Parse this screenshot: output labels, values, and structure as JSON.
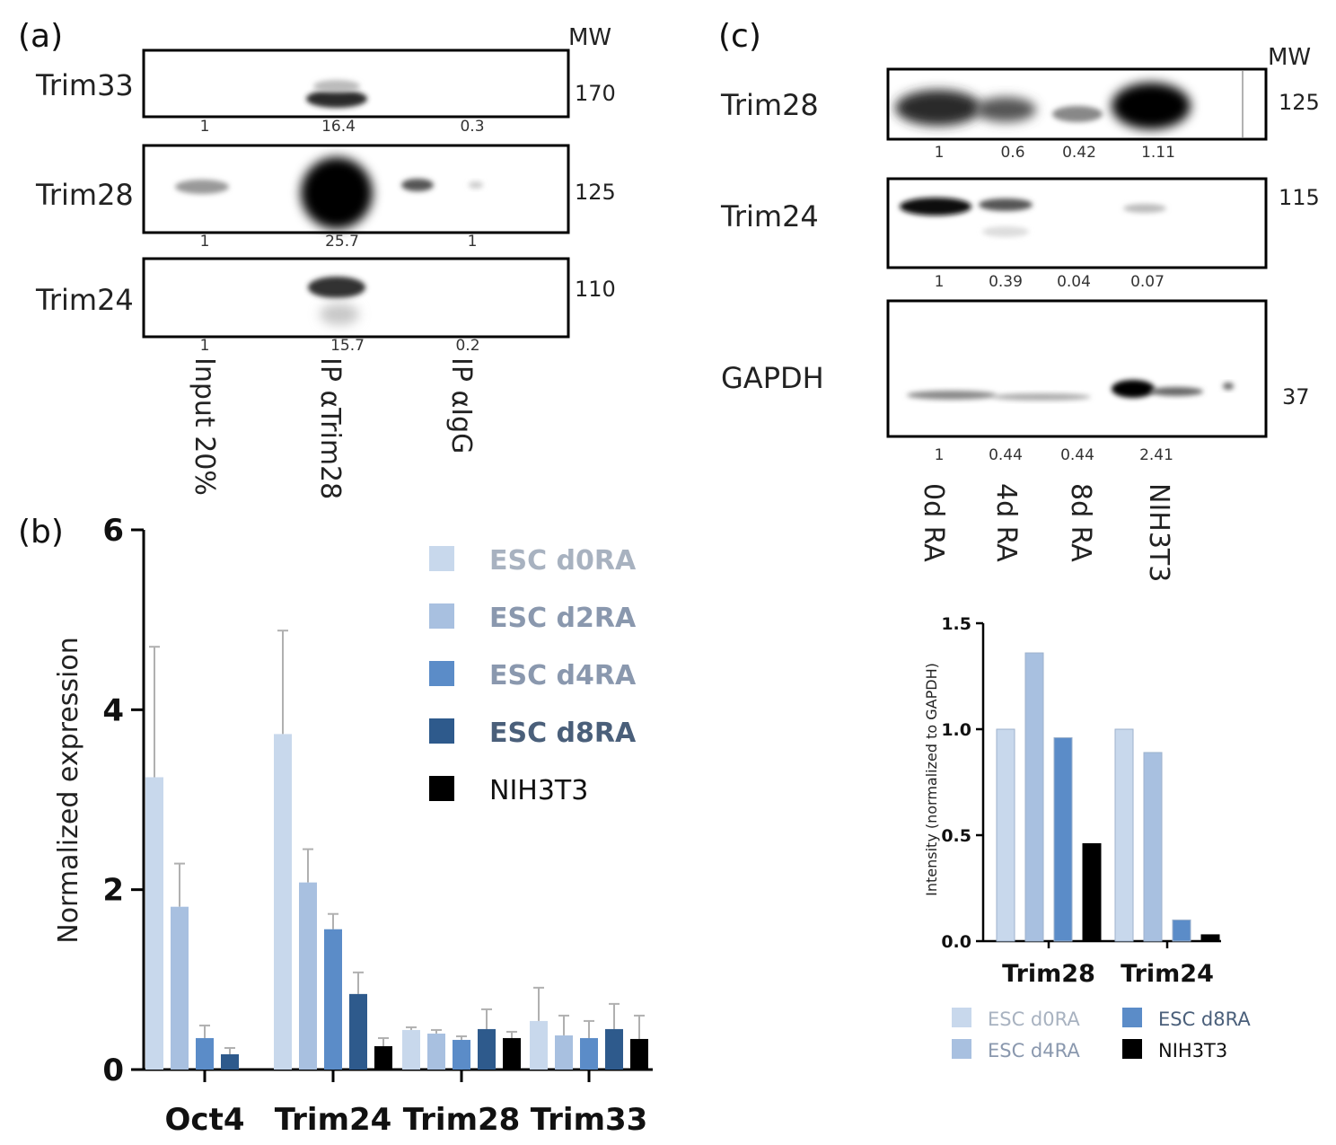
{
  "figure": {
    "panel_a": {
      "letter": "(a)",
      "mw_header": "MW",
      "blots": [
        {
          "protein": "Trim33",
          "mw": "170",
          "quant": [
            "1",
            "16.4",
            "0.3"
          ]
        },
        {
          "protein": "Trim28",
          "mw": "125",
          "quant": [
            "1",
            "25.7",
            "1"
          ]
        },
        {
          "protein": "Trim24",
          "mw": "110",
          "quant": [
            "1",
            "15.7",
            "0.2"
          ]
        }
      ],
      "lanes": [
        "Input 20%",
        "IP αTrim28",
        "IP αIgG"
      ]
    },
    "panel_c": {
      "letter": "(c)",
      "mw_header": "MW",
      "blots": [
        {
          "protein": "Trim28",
          "mw": "125",
          "quant": [
            "1",
            "0.6",
            "0.42",
            "1.11"
          ]
        },
        {
          "protein": "Trim24",
          "mw": "115",
          "quant": [
            "1",
            "0.39",
            "0.04",
            "0.07"
          ]
        },
        {
          "protein": "GAPDH",
          "mw": "37",
          "quant": [
            "1",
            "0.44",
            "0.44",
            "2.41"
          ]
        }
      ],
      "lanes": [
        "0d RA",
        "4d RA",
        "8d RA",
        "NIH3T3"
      ]
    },
    "panel_b": {
      "letter": "(b)"
    }
  },
  "colors": {
    "d0": "#c8d8ec",
    "d2": "#a8c0e0",
    "d4": "#5b8cc8",
    "d8": "#2e5a8c",
    "nih": "#000000",
    "legend_light_text": "#a8b2c0",
    "legend_mid_text": "#8a98ae",
    "legend_dark_text": "#4a5f7a",
    "error_bar": "#b0b0b0"
  },
  "chart_data": [
    {
      "type": "bar",
      "panel": "(b)",
      "title": "",
      "xlabel": "",
      "ylabel": "Normalized expression",
      "ylim": [
        0,
        6
      ],
      "yticks": [
        "0",
        "2",
        "4",
        "6"
      ],
      "categories": [
        "Oct4",
        "Trim24",
        "Trim28",
        "Trim33"
      ],
      "legend_position": "top-right",
      "series": [
        {
          "name": "ESC d0RA",
          "color_key": "d0",
          "values": [
            3.25,
            3.73,
            0.44,
            0.54
          ],
          "errors": [
            1.45,
            1.15,
            0.03,
            0.37
          ]
        },
        {
          "name": "ESC d2RA",
          "color_key": "d2",
          "values": [
            1.81,
            2.08,
            0.4,
            0.38
          ],
          "errors": [
            0.48,
            0.37,
            0.04,
            0.22
          ]
        },
        {
          "name": "ESC d4RA",
          "color_key": "d4",
          "values": [
            0.35,
            1.56,
            0.33,
            0.35
          ],
          "errors": [
            0.14,
            0.17,
            0.04,
            0.19
          ]
        },
        {
          "name": "ESC d8RA",
          "color_key": "d8",
          "values": [
            0.17,
            0.84,
            0.45,
            0.45
          ],
          "errors": [
            0.07,
            0.24,
            0.22,
            0.28
          ]
        },
        {
          "name": "NIH3T3",
          "color_key": "nih",
          "values": [
            null,
            0.26,
            0.35,
            0.34
          ],
          "errors": [
            0,
            0.09,
            0.07,
            0.26
          ]
        }
      ]
    },
    {
      "type": "bar",
      "panel": "(c)",
      "title": "",
      "xlabel": "",
      "ylabel": "Intensity (normalized to GAPDH)",
      "ylim": [
        0,
        1.5
      ],
      "yticks": [
        "0.0",
        "0.5",
        "1.0",
        "1.5"
      ],
      "categories": [
        "Trim28",
        "Trim24"
      ],
      "legend_position": "bottom",
      "series": [
        {
          "name": "ESC d0RA",
          "color_key": "d0",
          "values": [
            1.0,
            1.0
          ]
        },
        {
          "name": "ESC d4RA",
          "color_key": "d2",
          "values": [
            1.36,
            0.89
          ]
        },
        {
          "name": "ESC d8RA",
          "color_key": "d4",
          "values": [
            0.96,
            0.1
          ]
        },
        {
          "name": "NIH3T3",
          "color_key": "nih",
          "values": [
            0.46,
            0.03
          ]
        }
      ]
    }
  ]
}
